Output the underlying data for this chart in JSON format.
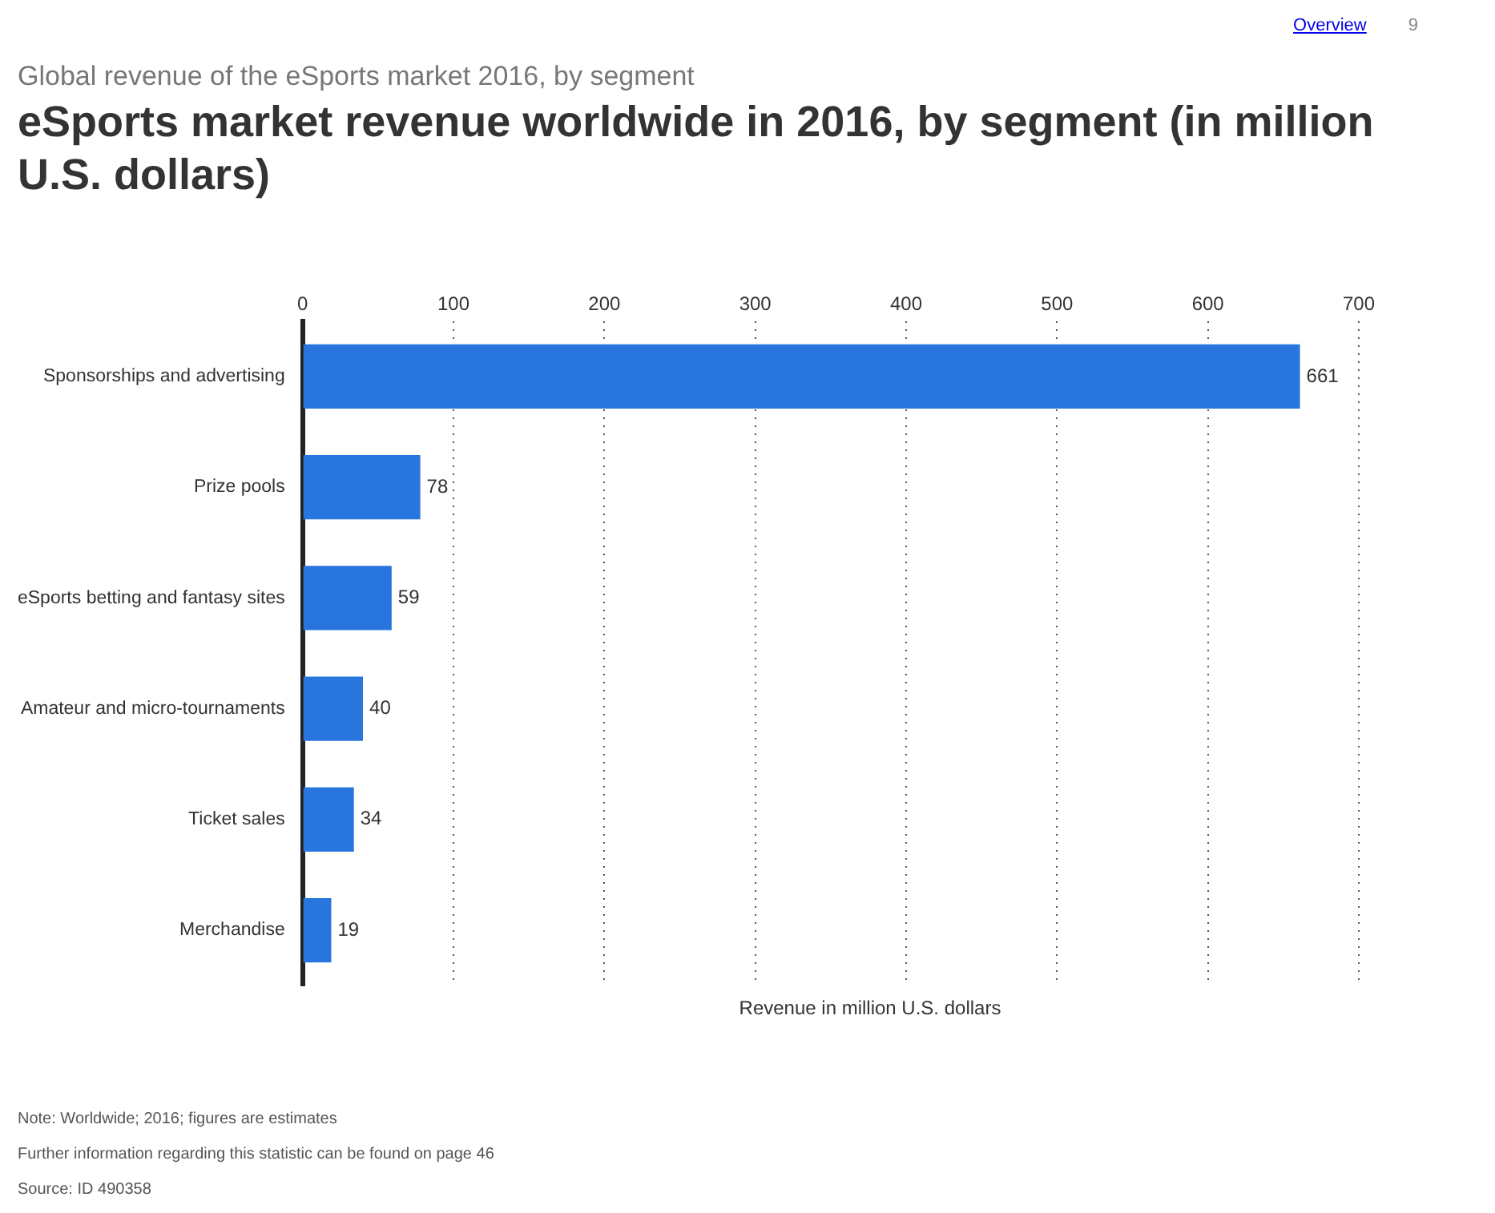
{
  "chart_data": {
    "type": "bar",
    "orientation": "horizontal",
    "subtitle": "Global revenue of the eSports market 2016, by segment",
    "title": "eSports market revenue worldwide in 2016, by segment (in million U.S. dollars)",
    "xlabel": "Revenue in million U.S. dollars",
    "categories": [
      "Sponsorships and advertising",
      "Prize pools",
      "eSports betting and fantasy sites",
      "Amateur and micro-tournaments",
      "Ticket sales",
      "Merchandise"
    ],
    "values": [
      661,
      78,
      59,
      40,
      34,
      19
    ],
    "color": "#2876dd",
    "xlim": [
      0,
      700
    ],
    "xticks": [
      0,
      100,
      200,
      300,
      400,
      500,
      600,
      700
    ],
    "grid": "x",
    "data_labels": true,
    "annotations": [
      "Overview",
      "9",
      "Note: Worldwide; 2016; figures are estimates",
      "Further information regarding this statistic can be found on page 46",
      "Source: ID 490358"
    ]
  }
}
